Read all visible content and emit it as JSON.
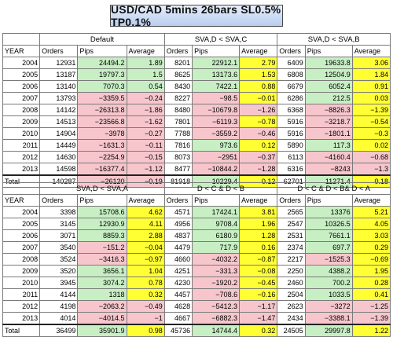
{
  "title": "USD/CAD 5mins 26bars SL0.5% TP0.1%",
  "col_labels": {
    "year": "YEAR",
    "orders": "Orders",
    "pips": "Pips",
    "average": "Average",
    "total": "Total"
  },
  "colors": {
    "green": "#c8efc4",
    "red": "#f6c6cc",
    "yellow": "#ffff33"
  },
  "years": [
    "2004",
    "2005",
    "2006",
    "2007",
    "2008",
    "2009",
    "2010",
    "2011",
    "2012",
    "2013"
  ],
  "table1": {
    "groups": [
      {
        "name": "Default",
        "rows": [
          {
            "o": "12931",
            "p": "24494.2",
            "a": "1.89",
            "pc": "g",
            "ac": "g"
          },
          {
            "o": "13187",
            "p": "19797.3",
            "a": "1.5",
            "pc": "g",
            "ac": "g"
          },
          {
            "o": "13140",
            "p": "7070.3",
            "a": "0.54",
            "pc": "g",
            "ac": "g"
          },
          {
            "o": "13793",
            "p": "−3359.5",
            "a": "−0.24",
            "pc": "r",
            "ac": "r"
          },
          {
            "o": "14142",
            "p": "−26313.8",
            "a": "−1.86",
            "pc": "r",
            "ac": "r"
          },
          {
            "o": "14513",
            "p": "−23566.8",
            "a": "−1.62",
            "pc": "r",
            "ac": "r"
          },
          {
            "o": "14904",
            "p": "−3978",
            "a": "−0.27",
            "pc": "r",
            "ac": "r"
          },
          {
            "o": "14449",
            "p": "−1631.3",
            "a": "−0.11",
            "pc": "r",
            "ac": "r"
          },
          {
            "o": "14630",
            "p": "−2254.9",
            "a": "−0.15",
            "pc": "r",
            "ac": "r"
          },
          {
            "o": "14598",
            "p": "−16377.4",
            "a": "−1.12",
            "pc": "r",
            "ac": "r"
          }
        ],
        "total": {
          "o": "140287",
          "p": "−26120",
          "a": "−0.19",
          "pc": "r",
          "ac": "r"
        }
      },
      {
        "name": "SVA,D < SVA,C",
        "rows": [
          {
            "o": "8201",
            "p": "22912.1",
            "a": "2.79",
            "pc": "g",
            "ac": "y"
          },
          {
            "o": "8625",
            "p": "13173.6",
            "a": "1.53",
            "pc": "g",
            "ac": "y"
          },
          {
            "o": "8430",
            "p": "7422.1",
            "a": "0.88",
            "pc": "g",
            "ac": "y"
          },
          {
            "o": "8227",
            "p": "−98.5",
            "a": "−0.01",
            "pc": "r",
            "ac": "y"
          },
          {
            "o": "8480",
            "p": "−10679.8",
            "a": "−1.26",
            "pc": "r",
            "ac": "r"
          },
          {
            "o": "7801",
            "p": "−6119.3",
            "a": "−0.78",
            "pc": "r",
            "ac": "y"
          },
          {
            "o": "7788",
            "p": "−3559.2",
            "a": "−0.46",
            "pc": "r",
            "ac": "r"
          },
          {
            "o": "7816",
            "p": "973.6",
            "a": "0.12",
            "pc": "g",
            "ac": "y"
          },
          {
            "o": "8073",
            "p": "−2951",
            "a": "−0.37",
            "pc": "r",
            "ac": "r"
          },
          {
            "o": "8477",
            "p": "−10844.2",
            "a": "−1.28",
            "pc": "r",
            "ac": "r"
          }
        ],
        "total": {
          "o": "81918",
          "p": "10229.4",
          "a": "0.12",
          "pc": "g",
          "ac": "y"
        }
      },
      {
        "name": "SVA,D < SVA,B",
        "rows": [
          {
            "o": "6409",
            "p": "19633.8",
            "a": "3.06",
            "pc": "g",
            "ac": "y"
          },
          {
            "o": "6808",
            "p": "12504.9",
            "a": "1.84",
            "pc": "g",
            "ac": "y"
          },
          {
            "o": "6679",
            "p": "6052.4",
            "a": "0.91",
            "pc": "g",
            "ac": "y"
          },
          {
            "o": "6286",
            "p": "212.5",
            "a": "0.03",
            "pc": "g",
            "ac": "y"
          },
          {
            "o": "6368",
            "p": "−8826.3",
            "a": "−1.39",
            "pc": "r",
            "ac": "y"
          },
          {
            "o": "5916",
            "p": "−3218.7",
            "a": "−0.54",
            "pc": "r",
            "ac": "y"
          },
          {
            "o": "5916",
            "p": "−1801.1",
            "a": "−0.3",
            "pc": "r",
            "ac": "y"
          },
          {
            "o": "5890",
            "p": "117.3",
            "a": "0.02",
            "pc": "g",
            "ac": "y"
          },
          {
            "o": "6113",
            "p": "−4160.4",
            "a": "−0.68",
            "pc": "r",
            "ac": "r"
          },
          {
            "o": "6316",
            "p": "−8243",
            "a": "−1.3",
            "pc": "r",
            "ac": "r"
          }
        ],
        "total": {
          "o": "62701",
          "p": "11271.4",
          "a": "0.18",
          "pc": "g",
          "ac": "y"
        }
      }
    ]
  },
  "table2": {
    "groups": [
      {
        "name": "SVA,D < SVA,A",
        "rows": [
          {
            "o": "3398",
            "p": "15708.6",
            "a": "4.62",
            "pc": "g",
            "ac": "y"
          },
          {
            "o": "3145",
            "p": "12930.9",
            "a": "4.11",
            "pc": "g",
            "ac": "y"
          },
          {
            "o": "3071",
            "p": "8859.3",
            "a": "2.88",
            "pc": "g",
            "ac": "y"
          },
          {
            "o": "3540",
            "p": "−151.2",
            "a": "−0.04",
            "pc": "r",
            "ac": "y"
          },
          {
            "o": "3524",
            "p": "−3416.3",
            "a": "−0.97",
            "pc": "r",
            "ac": "y"
          },
          {
            "o": "3520",
            "p": "3656.1",
            "a": "1.04",
            "pc": "g",
            "ac": "y"
          },
          {
            "o": "3945",
            "p": "3074.2",
            "a": "0.78",
            "pc": "g",
            "ac": "y"
          },
          {
            "o": "4144",
            "p": "1318",
            "a": "0.32",
            "pc": "g",
            "ac": "y"
          },
          {
            "o": "4198",
            "p": "−2063.2",
            "a": "−0.49",
            "pc": "r",
            "ac": "r"
          },
          {
            "o": "4014",
            "p": "−4014.5",
            "a": "−1",
            "pc": "r",
            "ac": "r"
          }
        ],
        "total": {
          "o": "36499",
          "p": "35901.9",
          "a": "0.98",
          "pc": "g",
          "ac": "y"
        }
      },
      {
        "name": "D < C & D < B",
        "rows": [
          {
            "o": "4571",
            "p": "17424.1",
            "a": "3.81",
            "pc": "g",
            "ac": "y"
          },
          {
            "o": "4956",
            "p": "9708.4",
            "a": "1.96",
            "pc": "g",
            "ac": "y"
          },
          {
            "o": "4837",
            "p": "6180.9",
            "a": "1.28",
            "pc": "g",
            "ac": "y"
          },
          {
            "o": "4479",
            "p": "717.9",
            "a": "0.16",
            "pc": "g",
            "ac": "y"
          },
          {
            "o": "4660",
            "p": "−4032.2",
            "a": "−0.87",
            "pc": "r",
            "ac": "y"
          },
          {
            "o": "4251",
            "p": "−331.3",
            "a": "−0.08",
            "pc": "r",
            "ac": "y"
          },
          {
            "o": "4230",
            "p": "−1920.2",
            "a": "−0.45",
            "pc": "r",
            "ac": "y"
          },
          {
            "o": "4457",
            "p": "−708.6",
            "a": "−0.16",
            "pc": "r",
            "ac": "y"
          },
          {
            "o": "4628",
            "p": "−5412.3",
            "a": "−1.17",
            "pc": "r",
            "ac": "r"
          },
          {
            "o": "4667",
            "p": "−6882.3",
            "a": "−1.47",
            "pc": "r",
            "ac": "r"
          }
        ],
        "total": {
          "o": "45736",
          "p": "14744.4",
          "a": "0.32",
          "pc": "g",
          "ac": "y"
        }
      },
      {
        "name": "D < C & D < B& D < A",
        "rows": [
          {
            "o": "2565",
            "p": "13376",
            "a": "5.21",
            "pc": "g",
            "ac": "y"
          },
          {
            "o": "2547",
            "p": "10326.5",
            "a": "4.05",
            "pc": "g",
            "ac": "y"
          },
          {
            "o": "2531",
            "p": "7661.1",
            "a": "3.03",
            "pc": "g",
            "ac": "y"
          },
          {
            "o": "2374",
            "p": "697.7",
            "a": "0.29",
            "pc": "g",
            "ac": "y"
          },
          {
            "o": "2217",
            "p": "−1525.3",
            "a": "−0.69",
            "pc": "r",
            "ac": "y"
          },
          {
            "o": "2250",
            "p": "4388.2",
            "a": "1.95",
            "pc": "g",
            "ac": "y"
          },
          {
            "o": "2460",
            "p": "700.2",
            "a": "0.28",
            "pc": "g",
            "ac": "y"
          },
          {
            "o": "2504",
            "p": "1033.5",
            "a": "0.41",
            "pc": "g",
            "ac": "y"
          },
          {
            "o": "2623",
            "p": "−3272",
            "a": "−1.25",
            "pc": "r",
            "ac": "r"
          },
          {
            "o": "2434",
            "p": "−3388.1",
            "a": "−1.39",
            "pc": "r",
            "ac": "r"
          }
        ],
        "total": {
          "o": "24505",
          "p": "29997.8",
          "a": "1.22",
          "pc": "g",
          "ac": "y"
        }
      }
    ]
  }
}
